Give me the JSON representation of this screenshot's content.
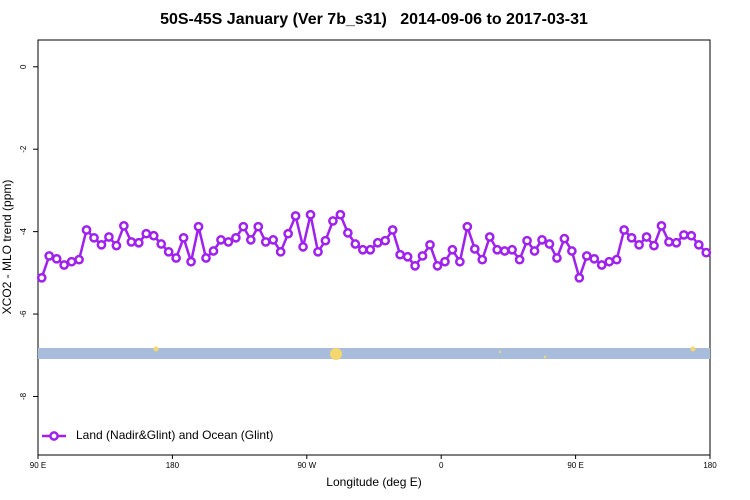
{
  "chart_data": {
    "type": "line",
    "title": "50S-45S January (Ver 7b_s31)   2014-09-06 to 2017-03-31",
    "xlabel": "Longitude (deg E)",
    "ylabel": "XCO2 - MLO trend (ppm)",
    "xlim": [
      90,
      540
    ],
    "xticks": [
      {
        "value": 90,
        "label": "90 E"
      },
      180,
      {
        "value": 270,
        "label": "90 W"
      },
      {
        "value": 360,
        "label": "0"
      },
      {
        "value": 450,
        "label": "90 E"
      },
      {
        "value": 540,
        "label": "180"
      }
    ],
    "ylim": [
      -9.42,
      0.65
    ],
    "yticks": [
      0,
      -2,
      -4,
      -6,
      -8
    ],
    "legend": "bottom-left",
    "x": [
      92.5,
      97.5,
      102.5,
      107.5,
      112.5,
      117.5,
      122.5,
      127.5,
      132.5,
      137.5,
      142.5,
      147.5,
      152.5,
      157.5,
      162.5,
      167.5,
      172.5,
      177.5,
      182.5,
      187.5,
      192.5,
      197.5,
      202.5,
      207.5,
      212.5,
      217.5,
      222.5,
      227.5,
      232.5,
      237.5,
      242.5,
      247.5,
      252.5,
      257.5,
      262.5,
      267.5,
      272.5,
      277.5,
      282.5,
      287.5,
      292.5,
      297.5,
      302.5,
      307.5,
      312.5,
      317.5,
      322.5,
      327.5,
      332.5,
      337.5,
      342.5,
      347.5,
      352.5,
      357.5,
      362.5,
      367.5,
      372.5,
      377.5,
      382.5,
      387.5,
      392.5,
      397.5,
      402.5,
      407.5,
      412.5,
      417.5,
      422.5,
      427.5,
      432.5,
      437.5,
      442.5,
      447.5,
      452.5,
      457.5,
      462.5,
      467.5,
      472.5,
      477.5,
      482.5,
      487.5,
      492.5,
      497.5,
      502.5,
      507.5,
      512.5,
      517.5,
      522.5,
      527.5,
      532.5,
      537.5
    ],
    "series": [
      {
        "name": "Land (Nadir&Glint) and Ocean (Glint)",
        "color": "#a020f0",
        "values": [
          -5.12,
          -4.59,
          -4.66,
          -4.81,
          -4.73,
          -4.68,
          -3.96,
          -4.15,
          -4.32,
          -4.13,
          -4.34,
          -3.86,
          -4.25,
          -4.27,
          -4.05,
          -4.1,
          -4.3,
          -4.49,
          -4.64,
          -4.15,
          -4.73,
          -3.88,
          -4.64,
          -4.47,
          -4.2,
          -4.25,
          -4.15,
          -3.88,
          -4.2,
          -3.88,
          -4.25,
          -4.2,
          -4.49,
          -4.05,
          -3.62,
          -4.37,
          -3.59,
          -4.49,
          -4.22,
          -3.74,
          -3.59,
          -4.03,
          -4.3,
          -4.44,
          -4.44,
          -4.27,
          -4.22,
          -3.96,
          -4.56,
          -4.61,
          -4.83,
          -4.59,
          -4.32,
          -4.83,
          -4.73,
          -4.44,
          -4.73,
          -3.88,
          -4.42,
          -4.68,
          -4.13,
          -4.44,
          -4.47,
          -4.44,
          -4.68,
          -4.22,
          -4.47,
          -4.2,
          -4.3,
          -4.64,
          -4.17,
          -4.47,
          -5.12,
          -4.59,
          -4.66,
          -4.81,
          -4.73,
          -4.68,
          -3.96,
          -4.15,
          -4.32,
          -4.13,
          -4.34,
          -3.86,
          -4.25,
          -4.27,
          -4.08,
          -4.1,
          -4.32,
          -4.51
        ]
      }
    ]
  }
}
